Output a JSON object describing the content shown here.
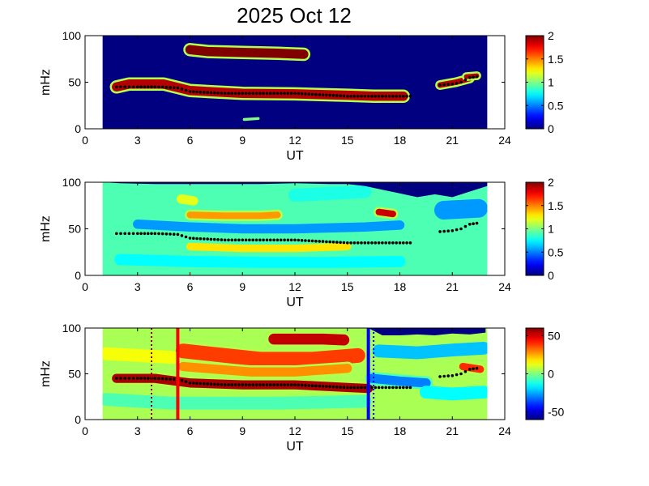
{
  "title": "2025 Oct 12",
  "chart_data": [
    {
      "type": "heatmap",
      "name": "panel-1",
      "xlabel": "UT",
      "ylabel": "mHz",
      "xlim": [
        0,
        24
      ],
      "ylim": [
        0,
        100
      ],
      "x_ticks": [
        "0",
        "3",
        "6",
        "9",
        "12",
        "15",
        "18",
        "21",
        "24"
      ],
      "y_ticks": [
        "0",
        "50",
        "100"
      ],
      "data_extent_x": [
        1.0,
        23.0
      ],
      "colorbar": {
        "min": 0,
        "max": 2,
        "ticks": [
          "0",
          "0.5",
          "1",
          "1.5",
          "2"
        ]
      },
      "background_value": 0,
      "features": [
        {
          "x": [
            1.8,
            2.5,
            4.5,
            6,
            9,
            12,
            15,
            16.5,
            18.2
          ],
          "y": [
            45,
            48,
            48,
            41,
            38,
            37.5,
            36,
            35,
            35
          ],
          "thickness": 10,
          "value": 1.9
        },
        {
          "x": [
            6,
            7,
            9,
            11,
            12.5
          ],
          "y": [
            85,
            83,
            82,
            81,
            80
          ],
          "thickness": 10,
          "value": 2.0
        },
        {
          "x": [
            20.3,
            21.2,
            22.0
          ],
          "y": [
            47,
            50,
            54
          ],
          "thickness": 6,
          "value": 1.9
        },
        {
          "x": [
            21.8,
            22.4
          ],
          "y": [
            56,
            57
          ],
          "thickness": 5,
          "value": 1.9
        },
        {
          "x": [
            9.1,
            9.9
          ],
          "y": [
            10,
            11
          ],
          "thickness": 3,
          "value": 1.0
        }
      ],
      "markers": {
        "color": "#000000",
        "x": [
          1.8,
          3,
          4,
          5.3,
          6,
          7,
          8,
          9,
          10,
          11,
          12,
          13,
          14,
          15,
          16,
          17,
          18,
          18.6,
          20.3,
          21,
          21.5,
          22,
          22.4
        ],
        "y": [
          45,
          45,
          45,
          44,
          40,
          39,
          38,
          38,
          38,
          38,
          38,
          37,
          36,
          35,
          35,
          35,
          35,
          35,
          47,
          48,
          50,
          55,
          56
        ]
      }
    },
    {
      "type": "heatmap",
      "name": "panel-2",
      "xlabel": "UT",
      "ylabel": "mHz",
      "xlim": [
        0,
        24
      ],
      "ylim": [
        0,
        100
      ],
      "x_ticks": [
        "0",
        "3",
        "6",
        "9",
        "12",
        "15",
        "18",
        "21",
        "24"
      ],
      "y_ticks": [
        "0",
        "50",
        "100"
      ],
      "data_extent_x": [
        1.0,
        23.0
      ],
      "colorbar": {
        "min": 0,
        "max": 2,
        "ticks": [
          "0",
          "0.5",
          "1",
          "1.5",
          "2"
        ]
      },
      "background_value": 0.9,
      "features": [
        {
          "x": [
            6,
            8,
            10,
            11
          ],
          "y": [
            65,
            64,
            64,
            65
          ],
          "thickness": 7,
          "value": 1.45
        },
        {
          "x": [
            6,
            9,
            12,
            15
          ],
          "y": [
            31,
            29,
            29,
            31
          ],
          "thickness": 8,
          "value": 1.3
        },
        {
          "x": [
            3,
            6,
            9,
            12,
            16,
            18
          ],
          "y": [
            55,
            52,
            50,
            50,
            52,
            54
          ],
          "thickness": 10,
          "value": 0.55
        },
        {
          "x": [
            2,
            6,
            10,
            14,
            18
          ],
          "y": [
            17,
            15,
            14,
            14,
            15
          ],
          "thickness": 12,
          "value": 0.75
        },
        {
          "x": [
            16.8,
            17.6
          ],
          "y": [
            68,
            66
          ],
          "thickness": 7,
          "value": 1.85
        },
        {
          "x": [
            5.5,
            6.2
          ],
          "y": [
            82,
            80
          ],
          "thickness": 10,
          "value": 1.2
        },
        {
          "x": [
            20.5,
            22.5
          ],
          "y": [
            70,
            72
          ],
          "thickness": 20,
          "value": 0.55
        },
        {
          "x": [
            12,
            14,
            16
          ],
          "y": [
            86,
            88,
            90
          ],
          "thickness": 14,
          "value": 0.8
        }
      ],
      "top_mask": {
        "x": [
          1,
          2,
          4,
          6,
          8,
          10,
          12,
          14,
          15,
          16,
          17,
          18,
          19,
          20,
          21,
          22,
          23
        ],
        "y": [
          100,
          99,
          98,
          98,
          98,
          98,
          99,
          98,
          98,
          96,
          92,
          88,
          84,
          87,
          84,
          90,
          96
        ],
        "value": 0
      },
      "markers": {
        "color": "#000000",
        "x": [
          1.8,
          3,
          4,
          5.3,
          6,
          7,
          8,
          9,
          10,
          11,
          12,
          13,
          14,
          15,
          16,
          17,
          18,
          18.6,
          20.3,
          21,
          21.5,
          22,
          22.4
        ],
        "y": [
          45,
          45,
          45,
          44,
          40,
          39,
          38,
          38,
          38,
          38,
          38,
          37,
          36,
          35,
          35,
          35,
          35,
          35,
          47,
          48,
          50,
          55,
          56
        ]
      }
    },
    {
      "type": "heatmap",
      "name": "panel-3",
      "xlabel": "UT",
      "ylabel": "mHz",
      "xlim": [
        0,
        24
      ],
      "ylim": [
        0,
        100
      ],
      "x_ticks": [
        "0",
        "3",
        "6",
        "9",
        "12",
        "15",
        "18",
        "21",
        "24"
      ],
      "y_ticks": [
        "0",
        "50",
        "100"
      ],
      "data_extent_x": [
        1.0,
        23.0
      ],
      "colorbar": {
        "min": -60,
        "max": 60,
        "ticks": [
          "50",
          "0",
          "-50"
        ]
      },
      "background_value": 5,
      "features": [
        {
          "x": [
            1.8,
            4,
            6,
            9,
            12,
            15,
            16.2
          ],
          "y": [
            45,
            45,
            40,
            38,
            38,
            35,
            34
          ],
          "thickness": 10,
          "value": 55
        },
        {
          "x": [
            10.8,
            12,
            13.6,
            14.8
          ],
          "y": [
            88,
            88,
            88,
            87
          ],
          "thickness": 12,
          "value": 52
        },
        {
          "x": [
            5.6,
            8,
            10,
            13,
            15.6
          ],
          "y": [
            75,
            70,
            66,
            66,
            70
          ],
          "thickness": 16,
          "value": 38
        },
        {
          "x": [
            5.6,
            7.5,
            9.5,
            12,
            15
          ],
          "y": [
            58,
            55,
            52,
            52,
            56
          ],
          "thickness": 10,
          "value": 28
        },
        {
          "x": [
            1.2,
            3,
            5
          ],
          "y": [
            72,
            70,
            68
          ],
          "thickness": 14,
          "value": 14
        },
        {
          "x": [
            1.2,
            3,
            5,
            8,
            11,
            14,
            16
          ],
          "y": [
            22,
            20,
            18,
            18,
            18,
            19,
            20
          ],
          "thickness": 14,
          "value": -6
        },
        {
          "x": [
            16.4,
            18,
            19.5
          ],
          "y": [
            45,
            42,
            40
          ],
          "thickness": 10,
          "value": -30
        },
        {
          "x": [
            16.8,
            19,
            21,
            22.8
          ],
          "y": [
            75,
            73,
            76,
            78
          ],
          "thickness": 14,
          "value": -22
        },
        {
          "x": [
            19.5,
            21,
            22.8
          ],
          "y": [
            30,
            28,
            30
          ],
          "thickness": 14,
          "value": -15
        },
        {
          "x": [
            21.6,
            22.6
          ],
          "y": [
            58,
            55
          ],
          "thickness": 8,
          "value": 40
        }
      ],
      "top_mask": {
        "x": [
          16.2,
          17,
          18,
          19,
          20,
          21,
          22,
          22.9
        ],
        "y": [
          100,
          92,
          92,
          93,
          92,
          94,
          93,
          95
        ],
        "value": -60
      },
      "markers": {
        "color": "#000000",
        "x": [
          1.8,
          3,
          4,
          5.3,
          6,
          7,
          8,
          9,
          10,
          11,
          12,
          13,
          14,
          15,
          16,
          17,
          18,
          18.6,
          20.3,
          21,
          21.5,
          22,
          22.4
        ],
        "y": [
          45,
          45,
          45,
          44,
          40,
          39,
          38,
          38,
          38,
          38,
          38,
          37,
          36,
          35,
          35,
          35,
          35,
          35,
          47,
          48,
          50,
          55,
          56
        ]
      },
      "vlines": [
        {
          "x": 5.3,
          "color": "#ff0000",
          "style": "solid"
        },
        {
          "x": 16.2,
          "color": "#0000ff",
          "style": "solid"
        },
        {
          "x": 3.8,
          "color": "#8b0000",
          "style": "dotted"
        },
        {
          "x": 16.5,
          "color": "#0000ff",
          "style": "dotted"
        }
      ]
    }
  ]
}
